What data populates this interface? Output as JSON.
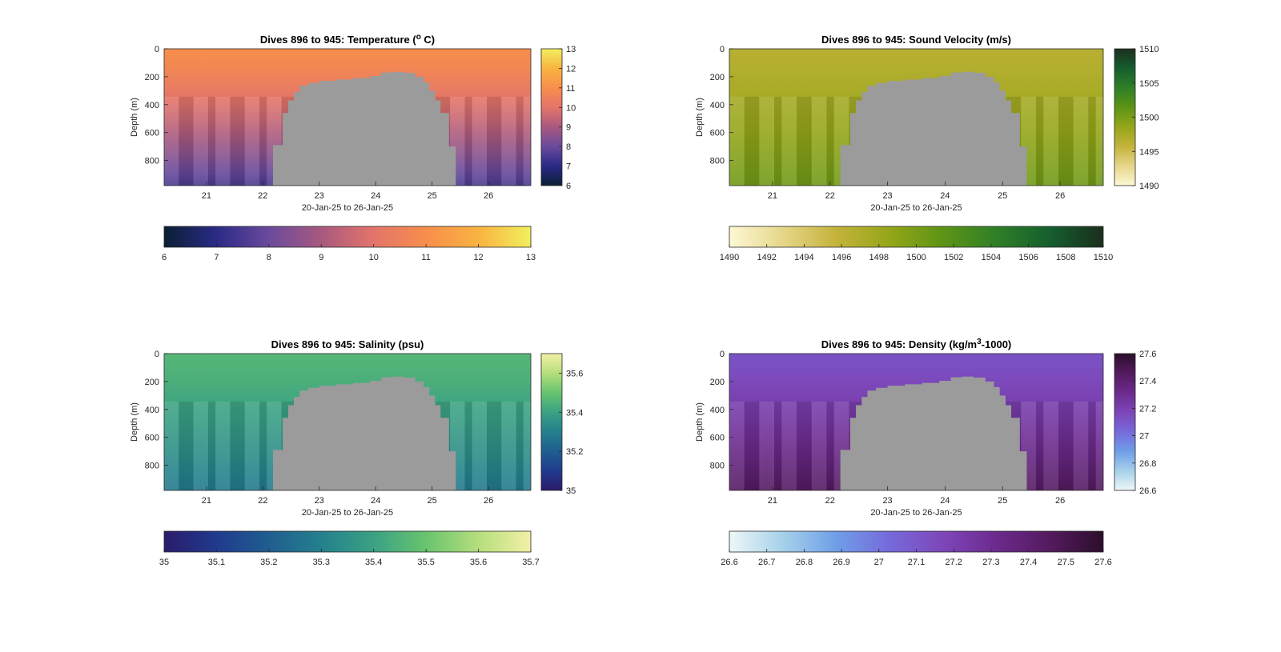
{
  "chart_data": [
    {
      "type": "heatmap",
      "title": "Dives 896 to 945: Temperature (",
      "title_sup": "o",
      "title_tail": " C)",
      "xlabel": "20-Jan-25 to 26-Jan-25",
      "ylabel": "Depth (m)",
      "xlim": [
        20.25,
        26.75
      ],
      "ylim": [
        0,
        980
      ],
      "y_reversed": true,
      "xticks": [
        "21",
        "22",
        "23",
        "24",
        "25",
        "26"
      ],
      "xtick_values": [
        21,
        22,
        23,
        24,
        25,
        26
      ],
      "yticks": [
        "0",
        "200",
        "400",
        "600",
        "800"
      ],
      "ytick_values": [
        0,
        200,
        400,
        600,
        800
      ],
      "surface_value": 11,
      "deep_value": 7.5,
      "colorbar_side": {
        "ticks": [
          "6",
          "7",
          "8",
          "9",
          "10",
          "11",
          "12",
          "13"
        ],
        "values": [
          6,
          7,
          8,
          9,
          10,
          11,
          12,
          13
        ]
      },
      "colorbar_bottom": {
        "ticks": [
          "6",
          "7",
          "8",
          "9",
          "10",
          "11",
          "12",
          "13"
        ],
        "values": [
          6,
          7,
          8,
          9,
          10,
          11,
          12,
          13
        ]
      },
      "clim": [
        6,
        13
      ],
      "colormap": [
        "#0a1f33",
        "#2a2a86",
        "#6a4a9c",
        "#a8597f",
        "#e3746a",
        "#f88e4c",
        "#f9b341",
        "#f1ef5d"
      ]
    },
    {
      "type": "heatmap",
      "title": "Dives 896 to 945: Sound Velocity (m/s)",
      "title_sup": "",
      "title_tail": "",
      "xlabel": "20-Jan-25 to 26-Jan-25",
      "ylabel": "Depth (m)",
      "xlim": [
        20.25,
        26.75
      ],
      "ylim": [
        0,
        980
      ],
      "y_reversed": true,
      "xticks": [
        "21",
        "22",
        "23",
        "24",
        "25",
        "26"
      ],
      "xtick_values": [
        21,
        22,
        23,
        24,
        25,
        26
      ],
      "yticks": [
        "0",
        "200",
        "400",
        "600",
        "800"
      ],
      "ytick_values": [
        0,
        200,
        400,
        600,
        800
      ],
      "surface_value": 1496.5,
      "deep_value": 1500.5,
      "colorbar_side": {
        "ticks": [
          "1490",
          "1495",
          "1500",
          "1505",
          "1510"
        ],
        "values": [
          1490,
          1495,
          1500,
          1505,
          1510
        ]
      },
      "colorbar_bottom": {
        "ticks": [
          "1490",
          "1492",
          "1494",
          "1496",
          "1498",
          "1500",
          "1502",
          "1504",
          "1506",
          "1508",
          "1510"
        ],
        "values": [
          1490,
          1492,
          1494,
          1496,
          1498,
          1500,
          1502,
          1504,
          1506,
          1508,
          1510
        ]
      },
      "clim": [
        1490,
        1510
      ],
      "colormap": [
        "#fdf8d6",
        "#e6d68a",
        "#c4b33b",
        "#95a619",
        "#5d9416",
        "#2f7f27",
        "#155e2e",
        "#1b2e1d"
      ]
    },
    {
      "type": "heatmap",
      "title": "Dives 896 to 945: Salinity (psu)",
      "title_sup": "",
      "title_tail": "",
      "xlabel": "20-Jan-25 to 26-Jan-25",
      "ylabel": "Depth (m)",
      "xlim": [
        20.25,
        26.75
      ],
      "ylim": [
        0,
        980
      ],
      "y_reversed": true,
      "xticks": [
        "21",
        "22",
        "23",
        "24",
        "25",
        "26"
      ],
      "xtick_values": [
        21,
        22,
        23,
        24,
        25,
        26
      ],
      "yticks": [
        "0",
        "200",
        "400",
        "600",
        "800"
      ],
      "ytick_values": [
        0,
        200,
        400,
        600,
        800
      ],
      "surface_value": 35.46,
      "deep_value": 35.28,
      "colorbar_side": {
        "ticks": [
          "35",
          "35.2",
          "35.4",
          "35.6"
        ],
        "values": [
          35,
          35.2,
          35.4,
          35.6
        ]
      },
      "colorbar_bottom": {
        "ticks": [
          "35",
          "35.1",
          "35.2",
          "35.3",
          "35.4",
          "35.5",
          "35.6",
          "35.7"
        ],
        "values": [
          35,
          35.1,
          35.2,
          35.3,
          35.4,
          35.5,
          35.6,
          35.7
        ]
      },
      "clim": [
        35,
        35.7
      ],
      "colormap": [
        "#2a1b6b",
        "#203a8d",
        "#1f5e8f",
        "#24808d",
        "#3aa183",
        "#68c46f",
        "#b5de7d",
        "#f3f0a6"
      ]
    },
    {
      "type": "heatmap",
      "title": "Dives 896 to 945: Density (kg/m",
      "title_sup": "3",
      "title_tail": "-1000)",
      "xlabel": "20-Jan-25 to 26-Jan-25",
      "ylabel": "Depth (m)",
      "xlim": [
        20.25,
        26.75
      ],
      "ylim": [
        0,
        980
      ],
      "y_reversed": true,
      "xticks": [
        "21",
        "22",
        "23",
        "24",
        "25",
        "26"
      ],
      "xtick_values": [
        21,
        22,
        23,
        24,
        25,
        26
      ],
      "yticks": [
        "0",
        "200",
        "400",
        "600",
        "800"
      ],
      "ytick_values": [
        0,
        200,
        400,
        600,
        800
      ],
      "surface_value": 27.12,
      "deep_value": 27.45,
      "colorbar_side": {
        "ticks": [
          "26.6",
          "26.8",
          "27",
          "27.2",
          "27.4",
          "27.6"
        ],
        "values": [
          26.6,
          26.8,
          27,
          27.2,
          27.4,
          27.6
        ]
      },
      "colorbar_bottom": {
        "ticks": [
          "26.6",
          "26.7",
          "26.8",
          "26.9",
          "27",
          "27.1",
          "27.2",
          "27.3",
          "27.4",
          "27.5",
          "27.6"
        ],
        "values": [
          26.6,
          26.7,
          26.8,
          26.9,
          27,
          27.1,
          27.2,
          27.3,
          27.4,
          27.5,
          27.6
        ]
      },
      "clim": [
        26.6,
        27.6
      ],
      "colormap": [
        "#eef7f7",
        "#a6d1ea",
        "#6f9ee8",
        "#766adb",
        "#7d46b8",
        "#6c2a8e",
        "#541a5e",
        "#2c0e2c"
      ]
    }
  ],
  "seafloor_mask": {
    "color": "#9b9b9b",
    "profile_x": [
      22.18,
      22.35,
      22.45,
      22.55,
      22.65,
      22.8,
      23.0,
      23.3,
      23.6,
      23.9,
      24.1,
      24.3,
      24.5,
      24.7,
      24.85,
      24.95,
      25.05,
      25.15,
      25.3,
      25.42
    ],
    "profile_depth": [
      690,
      460,
      370,
      310,
      265,
      245,
      230,
      220,
      210,
      195,
      170,
      165,
      172,
      200,
      240,
      300,
      370,
      460,
      700,
      980
    ]
  }
}
